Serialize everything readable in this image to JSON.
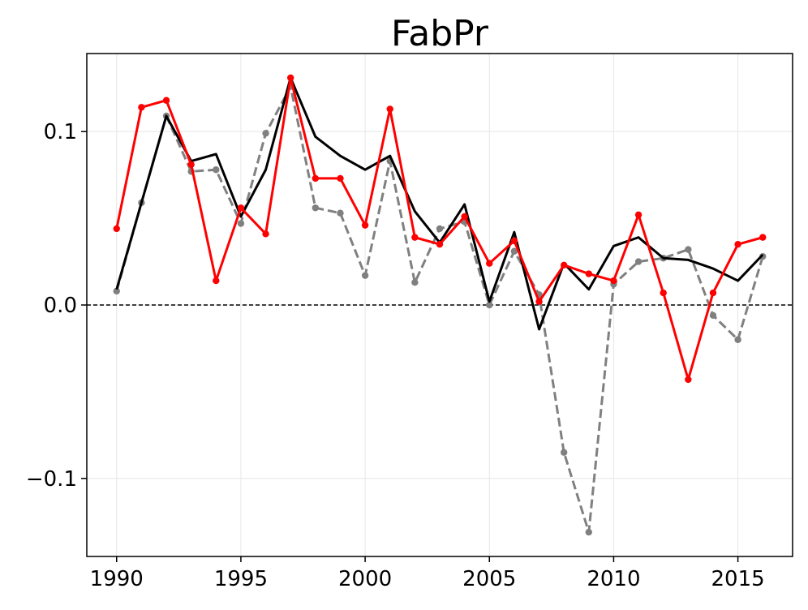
{
  "chart_data": {
    "type": "line",
    "title": "FabPr",
    "xlabel": "",
    "ylabel": "",
    "xlim": [
      1988.8,
      2017.2
    ],
    "ylim": [
      -0.145,
      0.145
    ],
    "xticks": [
      1990,
      1995,
      2000,
      2005,
      2010,
      2015
    ],
    "xtick_labels": [
      "1990",
      "1995",
      "2000",
      "2005",
      "2010",
      "2015"
    ],
    "yticks": [
      -0.1,
      0.0,
      0.1
    ],
    "ytick_labels": [
      "−0.1",
      "0.0",
      "0.1"
    ],
    "grid": true,
    "reference_line": {
      "y": 0.0,
      "style": "dashed",
      "color": "#000000"
    },
    "x": [
      1990,
      1991,
      1992,
      1993,
      1994,
      1995,
      1996,
      1997,
      1998,
      1999,
      2000,
      2001,
      2002,
      2003,
      2004,
      2005,
      2006,
      2007,
      2008,
      2009,
      2010,
      2011,
      2012,
      2013,
      2014,
      2015,
      2016
    ],
    "series": [
      {
        "style": "dashed",
        "markers": true,
        "color": "#808080",
        "values": [
          0.008,
          0.059,
          0.109,
          0.077,
          0.078,
          0.047,
          0.099,
          0.126,
          0.056,
          0.053,
          0.017,
          0.083,
          0.013,
          0.044,
          0.048,
          0.0,
          0.031,
          0.006,
          -0.085,
          -0.131,
          0.012,
          0.025,
          0.027,
          0.032,
          -0.006,
          -0.02,
          0.028
        ]
      },
      {
        "style": "solid",
        "markers": false,
        "color": "#000000",
        "values": [
          0.009,
          0.059,
          0.109,
          0.083,
          0.087,
          0.051,
          0.078,
          0.131,
          0.097,
          0.086,
          0.078,
          0.086,
          0.054,
          0.036,
          0.058,
          0.002,
          0.042,
          -0.014,
          0.024,
          0.009,
          0.034,
          0.039,
          0.027,
          0.026,
          0.021,
          0.014,
          0.029
        ]
      },
      {
        "style": "solid",
        "markers": true,
        "color": "#ff0000",
        "values": [
          0.044,
          0.114,
          0.118,
          0.081,
          0.014,
          0.056,
          0.041,
          0.131,
          0.073,
          0.073,
          0.046,
          0.113,
          0.039,
          0.035,
          0.051,
          0.024,
          0.037,
          0.002,
          0.023,
          0.018,
          0.014,
          0.052,
          0.007,
          -0.043,
          0.007,
          0.035,
          0.039
        ]
      }
    ]
  }
}
